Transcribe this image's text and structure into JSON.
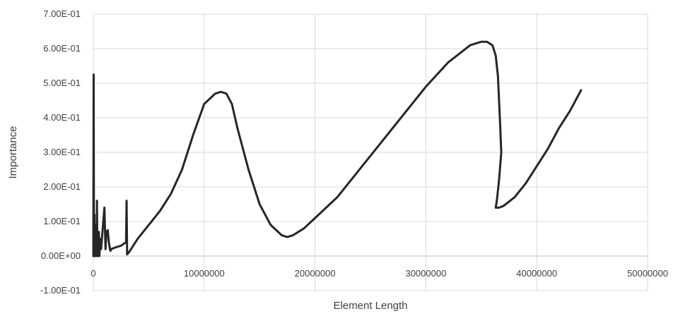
{
  "chart_data": {
    "type": "line",
    "xlabel": "Element Length",
    "ylabel": "Importance",
    "xlim": [
      0,
      50000000
    ],
    "ylim": [
      -0.1,
      0.7
    ],
    "grid": true,
    "x_ticks": [
      0,
      10000000,
      20000000,
      30000000,
      40000000,
      50000000
    ],
    "x_tick_labels": [
      "0",
      "10000000",
      "20000000",
      "30000000",
      "40000000",
      "50000000"
    ],
    "y_ticks": [
      -0.1,
      0.0,
      0.1,
      0.2,
      0.3,
      0.4,
      0.5,
      0.6,
      0.7
    ],
    "y_tick_labels": [
      "-1.00E-01",
      "0.00E+00",
      "1.00E-01",
      "2.00E-01",
      "3.00E-01",
      "4.00E-01",
      "5.00E-01",
      "6.00E-01",
      "7.00E-01"
    ],
    "line_color": "#262626",
    "grid_color": "#d9d9d9",
    "series": [
      {
        "x": [
          0,
          30000,
          60000,
          100000,
          120000,
          150000,
          200000,
          250000,
          300000,
          330000,
          360000,
          400000,
          450000,
          500000,
          550000,
          600000,
          700000,
          800000,
          900000,
          1000000,
          1100000,
          1150000,
          1200000,
          1300000,
          1400000,
          1500000,
          1550000,
          1600000,
          2000000,
          2500000,
          2950000,
          3000000,
          3050000,
          3200000,
          4000000,
          5000000,
          6000000,
          7000000,
          8000000,
          9000000,
          10000000,
          11000000,
          11500000,
          12000000,
          12500000,
          13000000,
          14000000,
          15000000,
          16000000,
          17000000,
          17500000,
          18000000,
          19000000,
          20000000,
          22000000,
          24000000,
          26000000,
          28000000,
          30000000,
          32000000,
          34000000,
          35000000,
          35500000,
          36000000,
          36300000,
          36500000,
          36600000,
          36700000,
          36800000,
          36600000,
          36400000,
          36300000,
          36600000,
          37000000,
          38000000,
          39000000,
          40000000,
          41000000,
          42000000,
          43000000,
          44000000
        ],
        "y": [
          0.0,
          0.525,
          0.0,
          0.12,
          0.0,
          0.09,
          0.0,
          0.08,
          0.0,
          0.16,
          0.0,
          0.06,
          0.0,
          0.07,
          0.0,
          0.05,
          0.02,
          0.06,
          0.1,
          0.14,
          0.02,
          0.05,
          0.07,
          0.075,
          0.04,
          0.02,
          0.015,
          0.02,
          0.025,
          0.03,
          0.04,
          0.16,
          0.005,
          0.01,
          0.05,
          0.09,
          0.13,
          0.18,
          0.25,
          0.35,
          0.44,
          0.47,
          0.475,
          0.47,
          0.44,
          0.37,
          0.25,
          0.15,
          0.09,
          0.06,
          0.055,
          0.06,
          0.08,
          0.11,
          0.17,
          0.25,
          0.33,
          0.41,
          0.49,
          0.56,
          0.61,
          0.62,
          0.62,
          0.61,
          0.58,
          0.52,
          0.45,
          0.38,
          0.3,
          0.22,
          0.16,
          0.14,
          0.14,
          0.145,
          0.17,
          0.21,
          0.26,
          0.31,
          0.37,
          0.42,
          0.48
        ]
      }
    ]
  }
}
